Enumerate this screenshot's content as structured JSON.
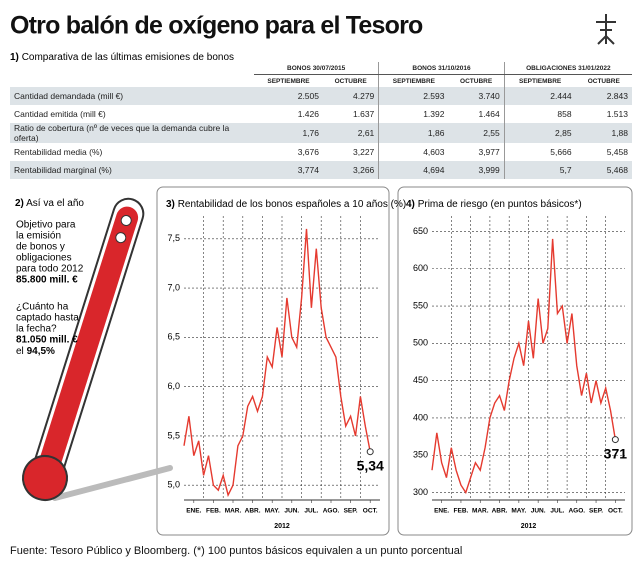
{
  "title": "Otro balón de oxígeno para el Tesoro",
  "table": {
    "number": "1)",
    "title": "Comparativa de las últimas emisiones de bonos",
    "groups": [
      "BONOS 30/07/2015",
      "BONOS 31/10/2016",
      "OBLIGACIONES 31/01/2022"
    ],
    "subheaders": [
      "SEPTIEMBRE",
      "OCTUBRE",
      "SEPTIEMBRE",
      "OCTUBRE",
      "SEPTIEMBRE",
      "OCTUBRE"
    ],
    "rows": [
      {
        "label": "Cantidad demandada (mill €)",
        "cells": [
          "2.505",
          "4.279",
          "2.593",
          "3.740",
          "2.444",
          "2.843"
        ]
      },
      {
        "label": "Cantidad emitida (mill €)",
        "cells": [
          "1.426",
          "1.637",
          "1.392",
          "1.464",
          "858",
          "1.513"
        ]
      },
      {
        "label": "Ratio de cobertura (nº de veces que la demanda cubre la oferta)",
        "cells": [
          "1,76",
          "2,61",
          "1,86",
          "2,55",
          "2,85",
          "1,88"
        ]
      },
      {
        "label": "Rentabilidad media (%)",
        "cells": [
          "3,676",
          "3,227",
          "4,603",
          "3,977",
          "5,666",
          "5,458"
        ]
      },
      {
        "label": "Rentabilidad marginal (%)",
        "cells": [
          "3,774",
          "3,266",
          "4,694",
          "3,999",
          "5,7",
          "5,468"
        ]
      }
    ]
  },
  "thermometer": {
    "number": "2)",
    "title": "Así va el año",
    "goal_lines": [
      "Objetivo para",
      "la emisión",
      "de bonos y",
      "obligaciones",
      "para todo 2012"
    ],
    "goal_value": "85.800 mill. €",
    "raised_lines": [
      "¿Cuánto ha",
      "captado hasta",
      "la fecha?"
    ],
    "raised_value": "81.050 mill. €",
    "pct_prefix": "el",
    "pct": "94,5%"
  },
  "chart_data": [
    {
      "type": "line",
      "number": "3)",
      "title": "Rentabilidad de los bonos españoles a 10 años (%)",
      "xlabel": "2012",
      "x": [
        1,
        1.25,
        1.5,
        1.75,
        2,
        2.25,
        2.5,
        2.75,
        3,
        3.25,
        3.5,
        3.75,
        4,
        4.25,
        4.5,
        4.75,
        5,
        5.25,
        5.5,
        5.75,
        6,
        6.25,
        6.5,
        6.75,
        7,
        7.25,
        7.5,
        7.75,
        8,
        8.25,
        8.5,
        8.75,
        9,
        9.25,
        9.5,
        9.75,
        10,
        10.25,
        10.5
      ],
      "xlim": [
        1,
        11
      ],
      "xticks": [
        {
          "value": 1.5,
          "label": "ENE."
        },
        {
          "value": 2.5,
          "label": "FEB."
        },
        {
          "value": 3.5,
          "label": "MAR."
        },
        {
          "value": 4.5,
          "label": "ABR."
        },
        {
          "value": 5.5,
          "label": "MAY."
        },
        {
          "value": 6.5,
          "label": "JUN."
        },
        {
          "value": 7.5,
          "label": "JUL."
        },
        {
          "value": 8.5,
          "label": "AGO."
        },
        {
          "value": 9.5,
          "label": "SEP."
        },
        {
          "value": 10.5,
          "label": "OCT."
        }
      ],
      "ylim": [
        4.85,
        7.65
      ],
      "yticks": [
        {
          "value": 5,
          "label": "5,0"
        },
        {
          "value": 5.5,
          "label": "5,5"
        },
        {
          "value": 6,
          "label": "6,0"
        },
        {
          "value": 6.5,
          "label": "6,5"
        },
        {
          "value": 7,
          "label": "7,0"
        },
        {
          "value": 7.5,
          "label": "7,5"
        }
      ],
      "grid": true,
      "series": [
        {
          "color": "#e53a2f",
          "values": [
            5.4,
            5.7,
            5.3,
            5.45,
            5.1,
            5.3,
            5.0,
            4.95,
            5.1,
            4.9,
            5.0,
            5.4,
            5.5,
            5.8,
            5.9,
            5.75,
            5.9,
            6.3,
            6.2,
            6.6,
            6.3,
            6.9,
            6.5,
            6.4,
            6.9,
            7.6,
            6.8,
            7.4,
            6.8,
            6.5,
            6.4,
            6.3,
            5.9,
            5.6,
            5.7,
            5.5,
            5.9,
            5.6,
            5.34
          ],
          "value_labels": [
            null,
            null,
            null,
            null,
            null,
            null,
            null,
            null,
            null,
            null,
            null,
            null,
            null,
            null,
            null,
            null,
            null,
            null,
            null,
            null,
            null,
            null,
            null,
            null,
            null,
            null,
            null,
            null,
            null,
            null,
            null,
            null,
            null,
            null,
            null,
            null,
            null,
            null,
            "5,34"
          ]
        }
      ]
    },
    {
      "type": "line",
      "number": "4)",
      "title": "Prima de riesgo (en puntos básicos*)",
      "xlabel": "2012",
      "x": [
        1,
        1.25,
        1.5,
        1.75,
        2,
        2.25,
        2.5,
        2.75,
        3,
        3.25,
        3.5,
        3.75,
        4,
        4.25,
        4.5,
        4.75,
        5,
        5.25,
        5.5,
        5.75,
        6,
        6.25,
        6.5,
        6.75,
        7,
        7.25,
        7.5,
        7.75,
        8,
        8.25,
        8.5,
        8.75,
        9,
        9.25,
        9.5,
        9.75,
        10,
        10.25,
        10.5
      ],
      "xlim": [
        1,
        11
      ],
      "xticks": [
        {
          "value": 1.5,
          "label": "ENE."
        },
        {
          "value": 2.5,
          "label": "FEB."
        },
        {
          "value": 3.5,
          "label": "MAR."
        },
        {
          "value": 4.5,
          "label": "ABR."
        },
        {
          "value": 5.5,
          "label": "MAY."
        },
        {
          "value": 6.5,
          "label": "JUN."
        },
        {
          "value": 7.5,
          "label": "JUL."
        },
        {
          "value": 8.5,
          "label": "AGO."
        },
        {
          "value": 9.5,
          "label": "SEP."
        },
        {
          "value": 10.5,
          "label": "OCT."
        }
      ],
      "ylim": [
        290,
        660
      ],
      "yticks": [
        300,
        350,
        400,
        450,
        500,
        550,
        600,
        650
      ],
      "grid": true,
      "series": [
        {
          "color": "#e53a2f",
          "values": [
            330,
            380,
            340,
            320,
            360,
            330,
            310,
            300,
            320,
            340,
            330,
            360,
            400,
            420,
            430,
            410,
            450,
            480,
            500,
            470,
            530,
            480,
            560,
            500,
            520,
            640,
            540,
            550,
            500,
            540,
            470,
            430,
            460,
            420,
            450,
            420,
            440,
            410,
            371
          ],
          "value_labels": [
            null,
            null,
            null,
            null,
            null,
            null,
            null,
            null,
            null,
            null,
            null,
            null,
            null,
            null,
            null,
            null,
            null,
            null,
            null,
            null,
            null,
            null,
            null,
            null,
            null,
            null,
            null,
            null,
            null,
            null,
            null,
            null,
            null,
            null,
            null,
            null,
            null,
            null,
            "371"
          ]
        }
      ]
    }
  ],
  "source": "Fuente: Tesoro Público y Bloomberg. (*) 100 puntos básicos equivalen a un punto porcentual"
}
